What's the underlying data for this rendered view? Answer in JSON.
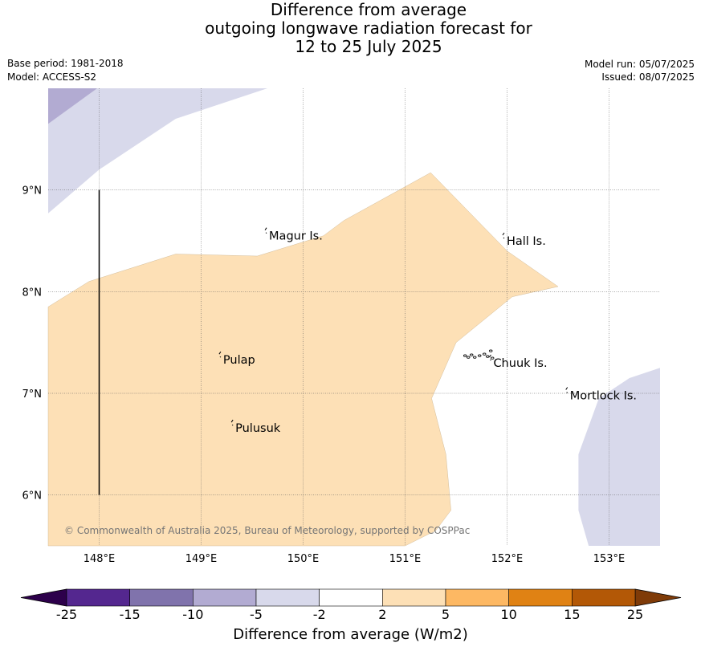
{
  "title": {
    "line1": "Difference from average",
    "line2": "outgoing longwave radiation forecast for",
    "line3": "12 to 25 July 2025"
  },
  "meta": {
    "base_period": "Base period: 1981-2018",
    "model": "Model: ACCESS-S2",
    "model_run": "Model run: 05/07/2025",
    "issued": "Issued: 08/07/2025"
  },
  "map": {
    "lon_range": [
      147.5,
      153.5
    ],
    "lat_range": [
      5.5,
      10.0
    ],
    "lon_ticks": [
      {
        "value": 148,
        "label": "148°E"
      },
      {
        "value": 149,
        "label": "149°E"
      },
      {
        "value": 150,
        "label": "150°E"
      },
      {
        "value": 151,
        "label": "151°E"
      },
      {
        "value": 152,
        "label": "152°E"
      },
      {
        "value": 153,
        "label": "153°E"
      }
    ],
    "lat_ticks": [
      {
        "value": 9,
        "label": "9°N"
      },
      {
        "value": 8,
        "label": "8°N"
      },
      {
        "value": 7,
        "label": "7°N"
      },
      {
        "value": 6,
        "label": "6°N"
      }
    ],
    "grid": true,
    "places": [
      {
        "name": "Magur Is.",
        "lon": 149.65,
        "lat": 8.55
      },
      {
        "name": "Hall Is.",
        "lon": 151.98,
        "lat": 8.5
      },
      {
        "name": "Pulap",
        "lon": 149.2,
        "lat": 7.33
      },
      {
        "name": "Chuuk Is.",
        "lon": 151.85,
        "lat": 7.3
      },
      {
        "name": "Mortlock Is.",
        "lon": 152.6,
        "lat": 6.98
      },
      {
        "name": "Pulusuk",
        "lon": 149.32,
        "lat": 6.66
      }
    ],
    "meridian_line": {
      "lon": 148.0,
      "lat_from": 9.0,
      "lat_to": 6.0
    },
    "anomaly_regions": [
      {
        "level": "2 to 5",
        "color": "#fde0b6",
        "points": [
          [
            147.5,
            7.85
          ],
          [
            147.9,
            8.1
          ],
          [
            148.75,
            8.37
          ],
          [
            149.55,
            8.35
          ],
          [
            150.2,
            8.55
          ],
          [
            150.4,
            8.7
          ],
          [
            151.25,
            9.17
          ],
          [
            152.0,
            8.4
          ],
          [
            152.5,
            8.05
          ],
          [
            152.05,
            7.95
          ],
          [
            151.5,
            7.5
          ],
          [
            151.26,
            6.95
          ],
          [
            151.4,
            6.4
          ],
          [
            151.45,
            5.85
          ],
          [
            151.3,
            5.65
          ],
          [
            151.0,
            5.5
          ],
          [
            147.5,
            5.5
          ]
        ]
      },
      {
        "level": "-5 to -2",
        "color": "#d8d9eb",
        "points": [
          [
            147.5,
            10.0
          ],
          [
            149.65,
            10.0
          ],
          [
            148.75,
            9.7
          ],
          [
            148.0,
            9.2
          ],
          [
            147.5,
            8.77
          ]
        ]
      },
      {
        "level": "-10 to -5",
        "color": "#b2abd2",
        "points": [
          [
            147.5,
            10.0
          ],
          [
            147.98,
            10.0
          ],
          [
            147.5,
            9.65
          ]
        ]
      },
      {
        "level": "-5 to -2",
        "color": "#d8d9eb",
        "points": [
          [
            153.5,
            7.25
          ],
          [
            153.2,
            7.15
          ],
          [
            152.9,
            6.95
          ],
          [
            152.7,
            6.4
          ],
          [
            152.7,
            5.85
          ],
          [
            152.8,
            5.5
          ],
          [
            153.5,
            5.5
          ]
        ]
      }
    ],
    "copyright": "© Commonwealth of Australia 2025, Bureau of Meteorology, supported by COSPPac"
  },
  "colorbar": {
    "title": "Difference from average (W/m2)",
    "tick_labels": [
      "-25",
      "-15",
      "-10",
      "-5",
      "-2",
      "2",
      "5",
      "10",
      "15",
      "25"
    ],
    "colors": [
      "#54278f",
      "#8073ac",
      "#b2abd2",
      "#d8d9eb",
      "#ffffff",
      "#fde0b6",
      "#fdb863",
      "#e08214",
      "#b35806"
    ],
    "extend_low_color": "#2d004b",
    "extend_high_color": "#7f3b08"
  }
}
